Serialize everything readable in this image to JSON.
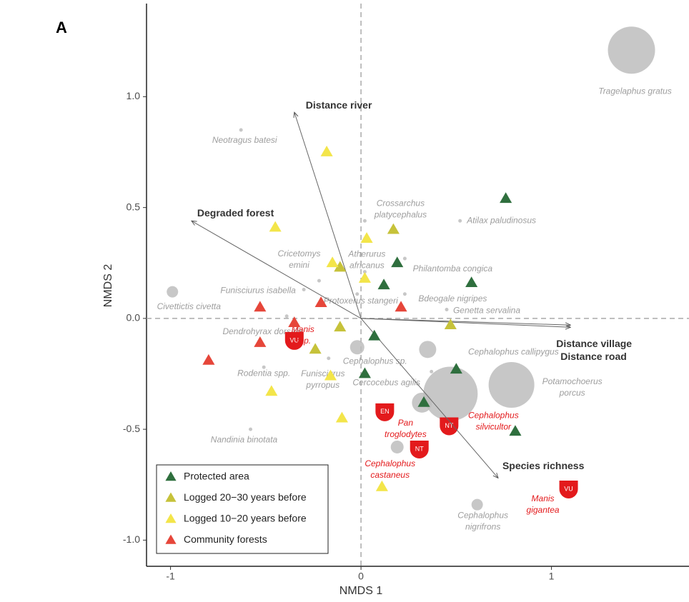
{
  "chart_data": {
    "type": "scatter",
    "panel": "A",
    "xlabel": "NMDS 1",
    "ylabel": "NMDS 2",
    "xlim": [
      -1.126,
      1.722
    ],
    "ylim": [
      -1.118,
      1.42
    ],
    "xticks": [
      -1,
      0,
      1
    ],
    "yticks": [
      {
        "value": -1,
        "label": "-1.0"
      },
      {
        "value": -0.5,
        "label": "-0.5"
      },
      {
        "value": 0,
        "label": "0.0"
      },
      {
        "value": 0.5,
        "label": "0.5"
      },
      {
        "value": 1,
        "label": "1.0"
      }
    ],
    "zero_lines": true,
    "legend": "bottom-left",
    "series": [
      {
        "name": "Protected area",
        "color": "#2f6f3e",
        "x": [
          0.76,
          0.58,
          0.12,
          0.19,
          0.07,
          0.02,
          0.5,
          0.33,
          0.81
        ],
        "values": [
          0.54,
          0.16,
          0.15,
          0.25,
          -0.08,
          -0.25,
          -0.23,
          -0.38,
          -0.51
        ]
      },
      {
        "name": "Logged 20−30 years before",
        "color": "#c6c23a",
        "x": [
          0.17,
          -0.11,
          -0.11,
          -0.24,
          0.47
        ],
        "values": [
          0.4,
          0.23,
          -0.04,
          -0.14,
          -0.03
        ]
      },
      {
        "name": "Logged 10−20 years before",
        "color": "#f3e54a",
        "x": [
          -0.18,
          -0.45,
          0.03,
          -0.15,
          0.02,
          -0.16,
          -0.47,
          -0.1,
          0.11
        ],
        "values": [
          0.75,
          0.41,
          0.36,
          0.25,
          0.18,
          -0.26,
          -0.33,
          -0.45,
          -0.76
        ]
      },
      {
        "name": "Community forests",
        "color": "#e6463a",
        "x": [
          -0.53,
          -0.21,
          -0.35,
          -0.53,
          -0.8,
          0.21
        ],
        "values": [
          0.05,
          0.07,
          -0.02,
          -0.11,
          -0.19,
          0.05
        ]
      }
    ],
    "vectors": [
      {
        "name": "Distance river",
        "x": -0.35,
        "y": 0.93
      },
      {
        "name": "Degraded forest",
        "x": -0.89,
        "y": 0.44
      },
      {
        "name": "Distance village",
        "x": 1.1,
        "y": -0.03
      },
      {
        "name": "Distance road",
        "x": 1.1,
        "y": -0.04
      },
      {
        "name": "Species richness",
        "x": 0.72,
        "y": -0.72
      }
    ],
    "species": [
      {
        "name": "Tragelaphus gratus",
        "x": 1.42,
        "y": 1.21,
        "size": 33
      },
      {
        "name": "Neotragus batesi",
        "x": -0.63,
        "y": 0.85,
        "size": 2.5
      },
      {
        "name": "Crossarchus platycephalus",
        "x": 0.02,
        "y": 0.44,
        "size": 2.5
      },
      {
        "name": "Atilax paludinosus",
        "x": 0.52,
        "y": 0.44,
        "size": 2.5
      },
      {
        "name": "Cricetomys emini",
        "x": -0.22,
        "y": 0.17,
        "size": 2.5
      },
      {
        "name": "Atherurus africanus",
        "x": 0.02,
        "y": 0.21,
        "size": 2.5
      },
      {
        "name": "Philantomba congica",
        "x": 0.23,
        "y": 0.27,
        "size": 2.5
      },
      {
        "name": "Funisciurus isabella",
        "x": -0.3,
        "y": 0.13,
        "size": 2.5
      },
      {
        "name": "Civettictis civetta",
        "x": -0.99,
        "y": 0.12,
        "size": 8
      },
      {
        "name": "Protoxerus stangeri",
        "x": -0.02,
        "y": 0.11,
        "size": 2.5
      },
      {
        "name": "Bdeogale nigripes",
        "x": 0.23,
        "y": 0.11,
        "size": 2.5
      },
      {
        "name": "Genetta servalina",
        "x": 0.45,
        "y": 0.04,
        "size": 2.5
      },
      {
        "name": "Dendrohyrax dorsalis",
        "x": -0.39,
        "y": 0.01,
        "size": 2.5
      },
      {
        "name": "Manis spp.",
        "x": -0.35,
        "y": -0.1,
        "status": "VU"
      },
      {
        "name": "Cephalophus sp.",
        "x": -0.02,
        "y": -0.13,
        "size": 10
      },
      {
        "name": "Cephalophus callipygus",
        "x": 0.35,
        "y": -0.14,
        "size": 12
      },
      {
        "name": "Rodentia spp.",
        "x": -0.51,
        "y": -0.22,
        "size": 2.5
      },
      {
        "name": "Funisciurus pyrropus",
        "x": -0.17,
        "y": -0.18,
        "size": 2.5
      },
      {
        "name": "Cercocebus agilis",
        "x": 0.37,
        "y": -0.24,
        "size": 2.5
      },
      {
        "name": "Potamochoerus porcus",
        "x": 0.79,
        "y": -0.3,
        "size": 32
      },
      {
        "name": "Cephalophus silvicultor",
        "x": 0.47,
        "y": -0.34,
        "size": 38,
        "status": "NT"
      },
      {
        "name": "Pan troglodytes",
        "x": 0.32,
        "y": -0.38,
        "size": 14,
        "status": "EN"
      },
      {
        "name": "Nandinia binotata",
        "x": -0.58,
        "y": -0.5,
        "size": 2.5
      },
      {
        "name": "Cephalophus castaneus",
        "x": 0.19,
        "y": -0.58,
        "size": 9,
        "status": "NT"
      },
      {
        "name": "Manis gigantea",
        "x": 1.09,
        "y": -0.77,
        "status": "VU"
      },
      {
        "name": "Cephalophus nigrifrons",
        "x": 0.61,
        "y": -0.84,
        "size": 8
      }
    ]
  }
}
